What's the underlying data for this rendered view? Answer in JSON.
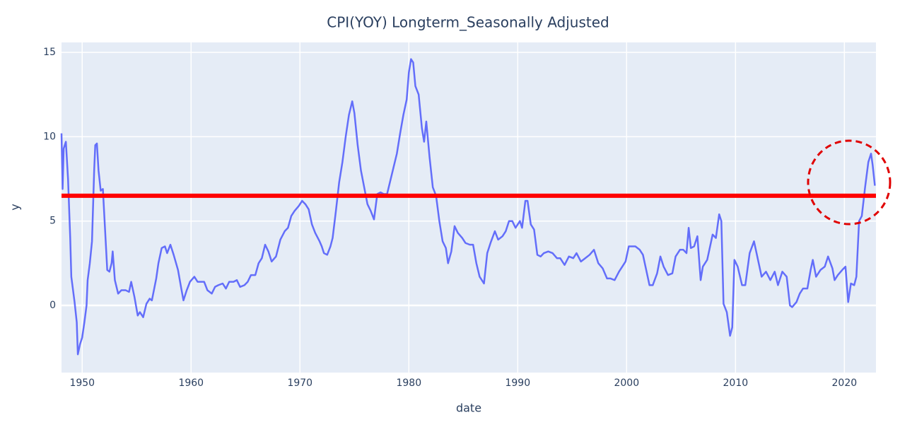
{
  "chart_data": {
    "type": "line",
    "title": "CPI(YOY) Longterm_Seasonally Adjusted",
    "x_label": "date",
    "y_label": "y",
    "color": "#636efa",
    "grid": true,
    "xlim": [
      1948.1,
      2022.9
    ],
    "xticks": [
      1950,
      1960,
      1970,
      1980,
      1990,
      2000,
      2010,
      2020
    ],
    "ylim": [
      -3.98,
      15.59
    ],
    "yticks": [
      0,
      5,
      10,
      15
    ],
    "hline": {
      "value": 6.5,
      "color": "#ff0000"
    },
    "x": [
      1948.1,
      1948.2,
      1948.3,
      1948.5,
      1948.7,
      1948.9,
      1949.0,
      1949.1,
      1949.3,
      1949.5,
      1949.6,
      1949.8,
      1950.0,
      1950.2,
      1950.4,
      1950.5,
      1950.7,
      1950.9,
      1951.1,
      1951.2,
      1951.35,
      1951.5,
      1951.7,
      1951.9,
      1952.1,
      1952.3,
      1952.5,
      1952.7,
      1952.8,
      1953.0,
      1953.3,
      1953.6,
      1954.0,
      1954.3,
      1954.5,
      1954.8,
      1955.1,
      1955.3,
      1955.6,
      1955.9,
      1956.2,
      1956.4,
      1956.8,
      1957.0,
      1957.3,
      1957.6,
      1957.8,
      1958.1,
      1958.4,
      1958.8,
      1959.1,
      1959.3,
      1959.6,
      1959.9,
      1960.3,
      1960.6,
      1960.9,
      1961.2,
      1961.5,
      1961.9,
      1962.2,
      1962.5,
      1962.9,
      1963.2,
      1963.5,
      1963.9,
      1964.2,
      1964.5,
      1964.9,
      1965.2,
      1965.5,
      1965.9,
      1966.2,
      1966.5,
      1966.8,
      1967.1,
      1967.4,
      1967.8,
      1968.2,
      1968.6,
      1968.9,
      1969.2,
      1969.5,
      1969.9,
      1970.2,
      1970.5,
      1970.8,
      1971.1,
      1971.4,
      1971.8,
      1972.0,
      1972.2,
      1972.5,
      1972.8,
      1973.0,
      1973.3,
      1973.6,
      1973.9,
      1974.2,
      1974.5,
      1974.8,
      1975.0,
      1975.3,
      1975.6,
      1975.9,
      1976.2,
      1976.5,
      1976.8,
      1977.1,
      1977.4,
      1977.7,
      1978.0,
      1978.3,
      1978.6,
      1978.9,
      1979.2,
      1979.5,
      1979.8,
      1980.0,
      1980.2,
      1980.4,
      1980.6,
      1980.9,
      1981.2,
      1981.4,
      1981.6,
      1981.9,
      1982.2,
      1982.5,
      1982.8,
      1983.1,
      1983.4,
      1983.6,
      1983.9,
      1984.2,
      1984.5,
      1984.9,
      1985.2,
      1985.6,
      1985.9,
      1986.2,
      1986.5,
      1986.7,
      1986.9,
      1987.2,
      1987.5,
      1987.9,
      1988.2,
      1988.6,
      1988.9,
      1989.2,
      1989.5,
      1989.8,
      1990.2,
      1990.4,
      1990.7,
      1990.9,
      1991.2,
      1991.5,
      1991.8,
      1992.1,
      1992.4,
      1992.8,
      1993.2,
      1993.6,
      1993.9,
      1994.3,
      1994.7,
      1995.1,
      1995.4,
      1995.8,
      1996.2,
      1996.6,
      1997.0,
      1997.4,
      1997.8,
      1998.2,
      1998.5,
      1998.9,
      1999.3,
      1999.6,
      1999.9,
      2000.2,
      2000.5,
      2000.8,
      2001.2,
      2001.5,
      2001.9,
      2002.1,
      2002.4,
      2002.8,
      2003.1,
      2003.4,
      2003.8,
      2004.2,
      2004.5,
      2004.9,
      2005.2,
      2005.5,
      2005.7,
      2005.9,
      2006.2,
      2006.5,
      2006.8,
      2007.0,
      2007.4,
      2007.9,
      2008.2,
      2008.5,
      2008.7,
      2008.9,
      2009.2,
      2009.5,
      2009.7,
      2009.9,
      2010.2,
      2010.6,
      2010.9,
      2011.3,
      2011.7,
      2012.0,
      2012.4,
      2012.8,
      2013.2,
      2013.6,
      2013.9,
      2014.3,
      2014.7,
      2015.0,
      2015.2,
      2015.6,
      2015.9,
      2016.2,
      2016.6,
      2016.9,
      2017.1,
      2017.4,
      2017.8,
      2018.2,
      2018.5,
      2018.9,
      2019.1,
      2019.4,
      2019.8,
      2020.1,
      2020.35,
      2020.6,
      2020.9,
      2021.1,
      2021.35,
      2021.6,
      2021.9,
      2022.2,
      2022.45,
      2022.6,
      2022.8
    ],
    "values": [
      10.2,
      6.9,
      9.3,
      9.7,
      7.5,
      4.0,
      1.7,
      1.2,
      0.2,
      -1.0,
      -2.9,
      -2.3,
      -1.9,
      -1.0,
      0.0,
      1.5,
      2.5,
      3.8,
      8.0,
      9.5,
      9.6,
      8.0,
      6.8,
      6.9,
      4.5,
      2.1,
      2.0,
      2.5,
      3.2,
      1.5,
      0.7,
      0.9,
      0.9,
      0.8,
      1.4,
      0.5,
      -0.6,
      -0.4,
      -0.7,
      0.1,
      0.4,
      0.3,
      1.6,
      2.5,
      3.4,
      3.5,
      3.1,
      3.6,
      3.0,
      2.1,
      1.0,
      0.3,
      0.9,
      1.4,
      1.7,
      1.4,
      1.4,
      1.4,
      0.9,
      0.7,
      1.1,
      1.2,
      1.3,
      1.0,
      1.4,
      1.4,
      1.5,
      1.1,
      1.2,
      1.4,
      1.8,
      1.8,
      2.5,
      2.8,
      3.6,
      3.2,
      2.6,
      2.9,
      3.9,
      4.4,
      4.6,
      5.3,
      5.6,
      5.9,
      6.2,
      6.0,
      5.7,
      4.8,
      4.3,
      3.8,
      3.5,
      3.1,
      3.0,
      3.5,
      4.0,
      5.6,
      7.3,
      8.5,
      10.0,
      11.3,
      12.1,
      11.4,
      9.5,
      8.0,
      7.0,
      6.0,
      5.6,
      5.1,
      6.6,
      6.7,
      6.6,
      6.6,
      7.4,
      8.2,
      9.0,
      10.2,
      11.3,
      12.2,
      13.8,
      14.6,
      14.4,
      13.0,
      12.5,
      10.5,
      9.7,
      10.9,
      8.8,
      7.0,
      6.5,
      5.0,
      3.8,
      3.4,
      2.5,
      3.2,
      4.7,
      4.3,
      4.0,
      3.7,
      3.6,
      3.6,
      2.5,
      1.7,
      1.5,
      1.3,
      3.1,
      3.7,
      4.4,
      3.9,
      4.1,
      4.4,
      5.0,
      5.0,
      4.6,
      5.0,
      4.6,
      6.2,
      6.2,
      4.8,
      4.5,
      3.0,
      2.9,
      3.1,
      3.2,
      3.1,
      2.8,
      2.8,
      2.4,
      2.9,
      2.8,
      3.1,
      2.6,
      2.8,
      3.0,
      3.3,
      2.5,
      2.2,
      1.6,
      1.6,
      1.5,
      2.0,
      2.3,
      2.6,
      3.5,
      3.5,
      3.5,
      3.3,
      3.0,
      1.8,
      1.2,
      1.2,
      1.9,
      2.9,
      2.3,
      1.8,
      1.9,
      2.9,
      3.3,
      3.3,
      3.1,
      4.6,
      3.4,
      3.5,
      4.1,
      1.5,
      2.3,
      2.7,
      4.2,
      4.0,
      5.4,
      5.0,
      0.1,
      -0.4,
      -1.8,
      -1.3,
      2.7,
      2.3,
      1.2,
      1.2,
      3.1,
      3.8,
      2.9,
      1.7,
      2.0,
      1.5,
      2.0,
      1.2,
      2.0,
      1.7,
      0.0,
      -0.1,
      0.2,
      0.7,
      1.0,
      1.0,
      2.1,
      2.7,
      1.7,
      2.1,
      2.3,
      2.9,
      2.2,
      1.5,
      1.8,
      2.1,
      2.3,
      0.2,
      1.3,
      1.2,
      1.7,
      5.0,
      5.3,
      7.0,
      8.5,
      9.0,
      8.3,
      7.1
    ]
  }
}
